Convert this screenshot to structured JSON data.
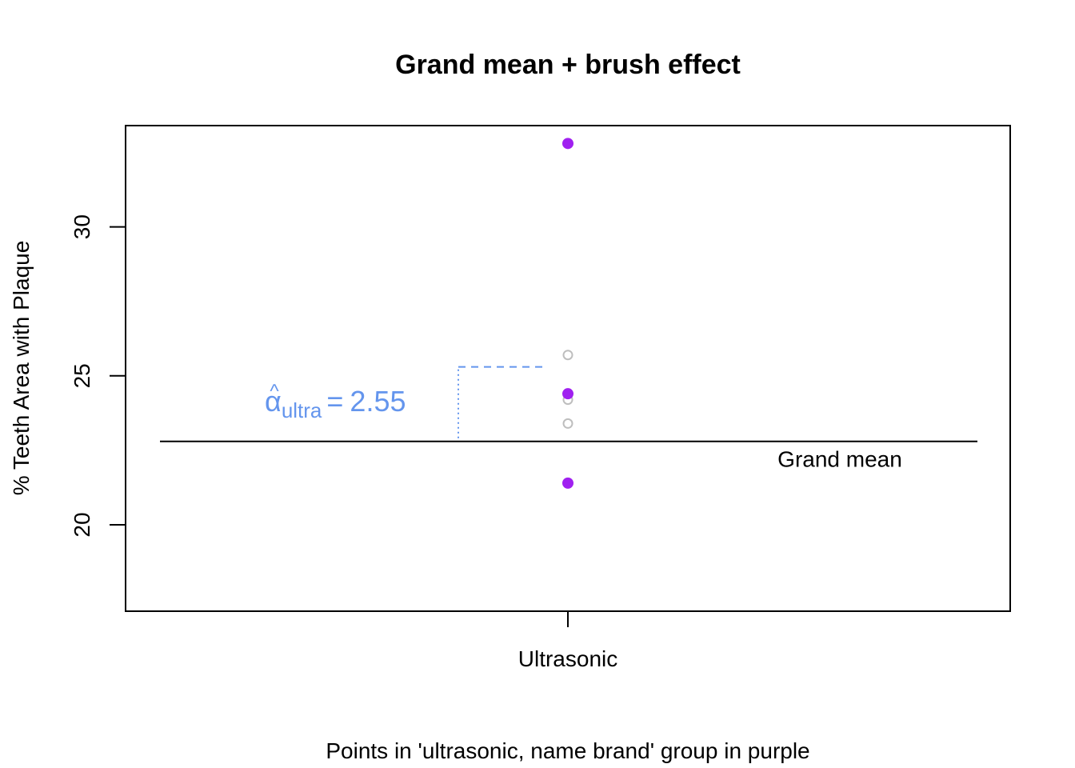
{
  "chart_data": {
    "type": "scatter",
    "title": "Grand mean + brush effect",
    "ylabel": "% Teeth Area with Plaque",
    "xlabel": "Points in 'ultrasonic, name brand' group in purple",
    "categories": [
      "Ultrasonic"
    ],
    "ylim": [
      17.1,
      33.4
    ],
    "yticks": [
      20,
      25,
      30
    ],
    "grid": false,
    "legend": "none",
    "series": [
      {
        "points": [
          {
            "x": "Ultrasonic",
            "y": 25.7
          },
          {
            "x": "Ultrasonic",
            "y": 24.2
          },
          {
            "x": "Ultrasonic",
            "y": 23.4
          }
        ],
        "style": "open-circle",
        "color": "#BEBEBE"
      },
      {
        "points": [
          {
            "x": "Ultrasonic",
            "y": 32.8
          },
          {
            "x": "Ultrasonic",
            "y": 24.4
          },
          {
            "x": "Ultrasonic",
            "y": 21.4
          }
        ],
        "style": "filled-circle",
        "color": "#A020F0"
      }
    ],
    "grand_mean": {
      "value": 22.8,
      "label": "Grand mean",
      "color": "#000000"
    },
    "effect": {
      "symbol": "α",
      "subscript": "ultra",
      "equals": "=",
      "value_text": "2.55",
      "from": 22.8,
      "to": 25.3,
      "color": "#6495ED"
    }
  }
}
